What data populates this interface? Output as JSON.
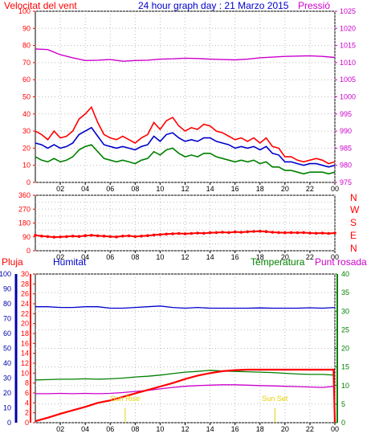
{
  "colors": {
    "red": "#ff0000",
    "blue": "#0000cc",
    "green": "#008000",
    "magenta": "#cc00cc",
    "yellow": "#e6d000",
    "darkblue": "#0000aa",
    "grid": "#bbbbbb",
    "frame": "#000000"
  },
  "header": {
    "left": "Velocitat del vent",
    "center": "24 hour graph day : 21 Marzo 2015",
    "right": "Pressió"
  },
  "labels": {
    "direction_letters": [
      "N",
      "W",
      "S",
      "E",
      "N"
    ],
    "pluja": "Pluja",
    "humitat": "Humitat",
    "temperatura": "Temperatura",
    "punt_rosada": "Punt rosada",
    "sun_rise": "Sun Rise",
    "sun_set": "Sun Set"
  },
  "chart_data": [
    {
      "type": "line",
      "name": "wind_pressure",
      "x_ticks": [
        "02",
        "04",
        "06",
        "08",
        "10",
        "12",
        "14",
        "16",
        "18",
        "20",
        "22",
        "00"
      ],
      "y_left_ticks": [
        0,
        10,
        20,
        30,
        40,
        50,
        60,
        70,
        80,
        90,
        100
      ],
      "y_left_range": [
        0,
        100
      ],
      "y_right_ticks": [
        975,
        980,
        985,
        990,
        995,
        1000,
        1005,
        1010,
        1015,
        1020,
        1025
      ],
      "y_right_range": [
        975,
        1025
      ],
      "x_range_hours": [
        0,
        24
      ],
      "series": [
        {
          "axis": "left",
          "color": "#ff0000",
          "x": [
            0,
            0.5,
            1,
            1.5,
            2,
            2.5,
            3,
            3.5,
            4,
            4.5,
            5,
            5.5,
            6,
            6.5,
            7,
            7.5,
            8,
            8.5,
            9,
            9.5,
            10,
            10.5,
            11,
            11.5,
            12,
            12.5,
            13,
            13.5,
            14,
            14.5,
            15,
            15.5,
            16,
            16.5,
            17,
            17.5,
            18,
            18.5,
            19,
            19.5,
            20,
            20.5,
            21,
            21.5,
            22,
            22.5,
            23,
            23.5,
            24
          ],
          "y": [
            30,
            28,
            25,
            30,
            26,
            27,
            30,
            37,
            40,
            44,
            35,
            28,
            26,
            25,
            27,
            25,
            23,
            26,
            28,
            35,
            31,
            36,
            38,
            33,
            30,
            32,
            31,
            34,
            33,
            30,
            29,
            27,
            25,
            26,
            24,
            26,
            23,
            26,
            21,
            20,
            15,
            15,
            13,
            12,
            13,
            14,
            13,
            11,
            12
          ]
        },
        {
          "axis": "left",
          "color": "#0000cc",
          "x": [
            0,
            0.5,
            1,
            1.5,
            2,
            2.5,
            3,
            3.5,
            4,
            4.5,
            5,
            5.5,
            6,
            6.5,
            7,
            7.5,
            8,
            8.5,
            9,
            9.5,
            10,
            10.5,
            11,
            11.5,
            12,
            12.5,
            13,
            13.5,
            14,
            14.5,
            15,
            15.5,
            16,
            16.5,
            17,
            17.5,
            18,
            18.5,
            19,
            19.5,
            20,
            20.5,
            21,
            21.5,
            22,
            22.5,
            23,
            23.5,
            24
          ],
          "y": [
            23,
            22,
            20,
            22,
            20,
            21,
            23,
            28,
            30,
            32,
            27,
            22,
            21,
            20,
            21,
            20,
            19,
            21,
            22,
            27,
            24,
            28,
            29,
            26,
            24,
            25,
            24,
            26,
            26,
            24,
            23,
            22,
            20,
            21,
            20,
            21,
            19,
            21,
            17,
            16,
            12,
            12,
            11,
            10,
            11,
            11,
            10,
            9,
            10
          ]
        },
        {
          "axis": "left",
          "color": "#008000",
          "x": [
            0,
            0.5,
            1,
            1.5,
            2,
            2.5,
            3,
            3.5,
            4,
            4.5,
            5,
            5.5,
            6,
            6.5,
            7,
            7.5,
            8,
            8.5,
            9,
            9.5,
            10,
            10.5,
            11,
            11.5,
            12,
            12.5,
            13,
            13.5,
            14,
            14.5,
            15,
            15.5,
            16,
            16.5,
            17,
            17.5,
            18,
            18.5,
            19,
            19.5,
            20,
            20.5,
            21,
            21.5,
            22,
            22.5,
            23,
            23.5,
            24
          ],
          "y": [
            15,
            13,
            12,
            14,
            12,
            13,
            15,
            19,
            21,
            22,
            18,
            14,
            13,
            12,
            13,
            12,
            11,
            13,
            14,
            18,
            16,
            19,
            20,
            17,
            15,
            16,
            15,
            17,
            17,
            15,
            14,
            13,
            12,
            13,
            12,
            13,
            11,
            12,
            9,
            9,
            7,
            7,
            6,
            5,
            6,
            6,
            6,
            5,
            6
          ]
        },
        {
          "axis": "right",
          "color": "#cc00cc",
          "x": [
            0,
            1,
            2,
            3,
            4,
            5,
            6,
            7,
            8,
            9,
            10,
            11,
            12,
            13,
            14,
            15,
            16,
            17,
            18,
            19,
            20,
            21,
            22,
            23,
            24
          ],
          "y": [
            1014,
            1013.8,
            1012.3,
            1011.4,
            1010.6,
            1010.7,
            1010.9,
            1010.4,
            1010.6,
            1010.7,
            1011,
            1011.1,
            1011.3,
            1011.2,
            1011,
            1010.9,
            1010.8,
            1011,
            1011.4,
            1011.6,
            1011.8,
            1011.9,
            1012,
            1011.8,
            1011.5
          ]
        }
      ]
    },
    {
      "type": "scatter",
      "name": "wind_direction",
      "x_ticks": [
        "02",
        "04",
        "06",
        "08",
        "10",
        "12",
        "14",
        "16",
        "18",
        "20",
        "22",
        "00"
      ],
      "y_left_ticks": [
        0,
        45,
        90,
        135,
        180,
        225,
        270,
        315,
        360
      ],
      "y_left_range": [
        0,
        360
      ],
      "x_range_hours": [
        0,
        24
      ],
      "series": [
        {
          "color": "#ff0000",
          "x": [
            0,
            0.5,
            1,
            1.5,
            2,
            2.5,
            3,
            3.5,
            4,
            4.5,
            5,
            5.5,
            6,
            6.5,
            7,
            7.5,
            8,
            8.5,
            9,
            9.5,
            10,
            10.5,
            11,
            11.5,
            12,
            12.5,
            13,
            13.5,
            14,
            14.5,
            15,
            15.5,
            16,
            16.5,
            17,
            17.5,
            18,
            18.5,
            19,
            19.5,
            20,
            20.5,
            21,
            21.5,
            22,
            22.5,
            23,
            23.5,
            24
          ],
          "y": [
            100,
            95,
            92,
            88,
            90,
            92,
            95,
            93,
            98,
            100,
            97,
            95,
            92,
            90,
            95,
            97,
            92,
            95,
            98,
            102,
            105,
            108,
            110,
            112,
            110,
            112,
            115,
            113,
            117,
            118,
            120,
            118,
            122,
            120,
            123,
            125,
            127,
            124,
            120,
            118,
            117,
            118,
            117,
            118,
            115,
            113,
            115,
            112,
            115
          ]
        }
      ]
    },
    {
      "type": "line",
      "name": "rain_humidity_temperature_dewpoint",
      "x_ticks": [
        "02",
        "04",
        "06",
        "08",
        "10",
        "12",
        "14",
        "16",
        "18",
        "20",
        "22",
        "00"
      ],
      "y_humidity_ticks": [
        0,
        10,
        20,
        30,
        40,
        50,
        60,
        70,
        80,
        90,
        100
      ],
      "y_humidity_range": [
        0,
        100
      ],
      "y_rain_ticks": [
        0,
        2,
        4,
        6,
        8,
        10,
        12,
        14,
        16,
        18,
        20,
        22,
        24,
        26,
        28,
        30
      ],
      "y_rain_range": [
        0,
        30
      ],
      "y_temp_ticks": [
        0,
        5,
        10,
        15,
        20,
        25,
        30,
        35,
        40
      ],
      "y_temp_range": [
        0,
        40
      ],
      "x_range_hours": [
        0,
        24
      ],
      "sun_rise_hour": 7.2,
      "sun_set_hour": 19.2,
      "series": [
        {
          "name": "Humitat",
          "axis": "humidity",
          "color": "#0000cc",
          "x": [
            0,
            1,
            2,
            3,
            4,
            5,
            6,
            7,
            8,
            9,
            10,
            11,
            12,
            13,
            14,
            15,
            16,
            17,
            18,
            19,
            20,
            21,
            22,
            23,
            24
          ],
          "y": [
            78,
            78,
            77.5,
            77.5,
            78,
            78,
            77,
            77,
            77.5,
            78,
            78.5,
            77.5,
            77,
            77.5,
            77,
            77,
            77,
            77,
            77.2,
            77,
            77,
            77,
            77.3,
            77,
            77.5
          ]
        },
        {
          "name": "Temperatura",
          "axis": "temp",
          "color": "#008000",
          "x": [
            0,
            1,
            2,
            3,
            4,
            5,
            6,
            7,
            8,
            9,
            10,
            11,
            12,
            13,
            14,
            15,
            16,
            17,
            18,
            19,
            20,
            21,
            22,
            23,
            24
          ],
          "y": [
            11.5,
            11.6,
            11.7,
            11.7,
            11.8,
            11.7,
            11.8,
            12,
            12.3,
            12.5,
            12.8,
            13.2,
            13.6,
            13.8,
            14.1,
            13.9,
            13.8,
            13.7,
            13.6,
            13.5,
            13.3,
            13.1,
            13,
            13,
            12.8
          ]
        },
        {
          "name": "Punt rosada",
          "axis": "temp",
          "color": "#cc00cc",
          "x": [
            0,
            1,
            2,
            3,
            4,
            5,
            6,
            7,
            8,
            9,
            10,
            11,
            12,
            13,
            14,
            15,
            16,
            17,
            18,
            19,
            20,
            21,
            22,
            23,
            24
          ],
          "y": [
            7.8,
            7.8,
            7.9,
            7.8,
            7.9,
            7.8,
            7.9,
            8.1,
            8.4,
            8.7,
            9.1,
            9.5,
            9.8,
            10,
            10.1,
            10.2,
            10.2,
            10.1,
            10,
            9.9,
            9.8,
            9.7,
            9.6,
            9.5,
            9.8
          ]
        },
        {
          "name": "Pluja",
          "axis": "rain",
          "color": "#ff0000",
          "x": [
            0,
            1,
            2,
            3,
            4,
            5,
            6,
            7,
            8,
            9,
            10,
            11,
            12,
            13,
            14,
            15,
            16,
            17,
            18,
            19,
            20,
            21,
            22,
            23,
            23.9,
            24
          ],
          "y": [
            0.3,
            1,
            1.8,
            2.5,
            3.2,
            4,
            4.5,
            5.2,
            5.9,
            6.6,
            7.3,
            8,
            8.8,
            9.5,
            10,
            10.4,
            10.6,
            10.7,
            10.7,
            10.7,
            10.7,
            10.7,
            10.7,
            10.7,
            10.7,
            0
          ]
        }
      ]
    }
  ]
}
